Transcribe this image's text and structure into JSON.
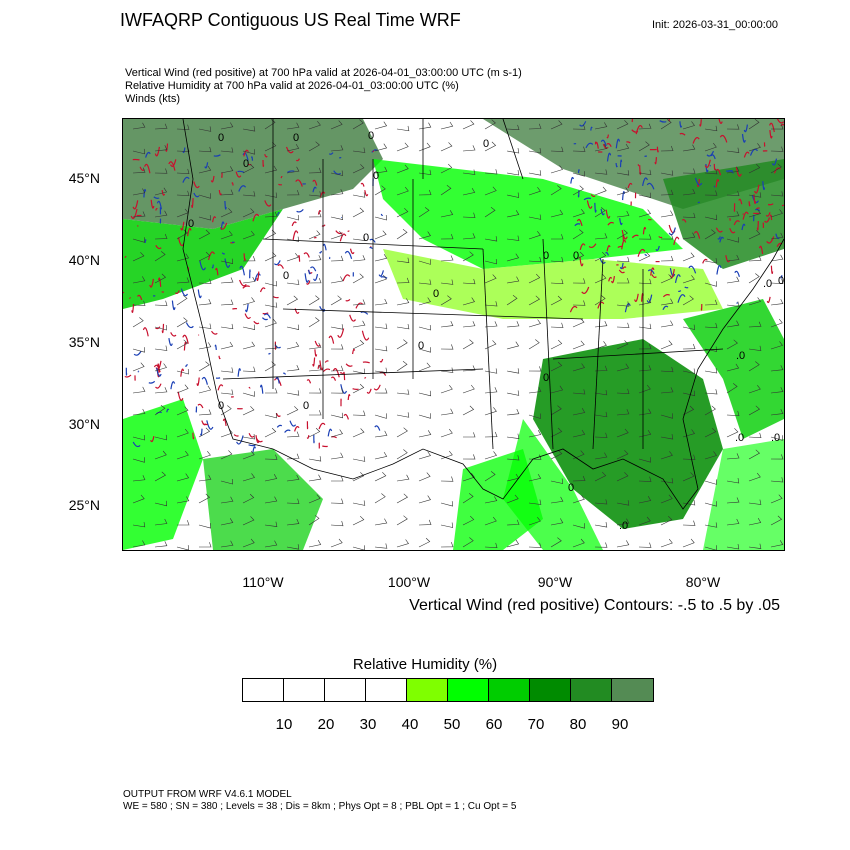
{
  "header": {
    "title": "IWFAQRP Contiguous US Real Time WRF",
    "init": "Init: 2026-03-31_00:00:00"
  },
  "subtitles": [
    "Vertical Wind (red positive) at 700 hPa valid at 2026-04-01_03:00:00 UTC   (m s-1)",
    "Relative Humidity at 700 hPa valid at 2026-04-01_03:00:00 UTC   (%)",
    "Winds   (kts)"
  ],
  "map": {
    "lat_labels": [
      "45°N",
      "40°N",
      "35°N",
      "30°N",
      "25°N"
    ],
    "lon_labels": [
      "110°W",
      "100°W",
      "90°W",
      "80°W"
    ],
    "contour_labels": [
      "0",
      "0",
      "0",
      "0",
      "0",
      "0",
      "0",
      "0",
      "0",
      "0",
      "0",
      "0",
      "0",
      "0",
      "0",
      "0",
      "0",
      "0",
      ".0",
      ".0",
      ".0",
      ".0",
      ".0"
    ],
    "colors": {
      "wind_positive": "#c8102e",
      "wind_negative": "#1a3fb5",
      "boundaries": "#000000",
      "wind_barbs": "#333333"
    }
  },
  "contour_note": "Vertical Wind (red positive) Contours: -.5 to .5 by .05",
  "colorbar": {
    "title": "Relative Humidity  (%)",
    "ticks": [
      "10",
      "20",
      "30",
      "40",
      "50",
      "60",
      "70",
      "80",
      "90"
    ],
    "colors": [
      "#ffffff",
      "#ffffff",
      "#ffffff",
      "#ffffff",
      "#7fff00",
      "#00ff00",
      "#00cd00",
      "#008b00",
      "#228b22",
      "#548b54"
    ]
  },
  "footer": {
    "line1": "OUTPUT FROM WRF V4.6.1 MODEL",
    "line2": "WE = 580 ; SN = 380 ; Levels = 38 ; Dis = 8km ; Phys Opt = 8 ; PBL Opt = 1 ; Cu Opt = 5"
  }
}
